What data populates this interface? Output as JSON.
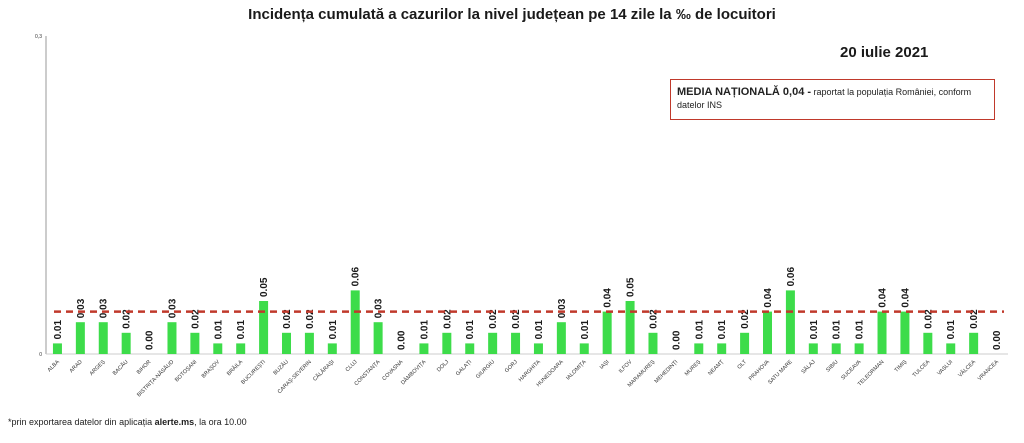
{
  "title": "Incidența cumulată a cazurilor la nivel județean pe 14 zile   la ‰ de locuitori",
  "date": "20 iulie 2021",
  "legend": {
    "strong": "MEDIA NAȚIONALĂ  0,04 -",
    "rest": " raportat la populația României, conform datelor INS"
  },
  "footnote": {
    "prefix": "*prin exportarea datelor din aplicația ",
    "bold": "alerte.ms",
    "suffix": ", la ora 10.00"
  },
  "colors": {
    "bar": "#3ddc4a",
    "average_line": "#c0392b",
    "axis": "#999999"
  },
  "chart_data": {
    "type": "bar",
    "title": "Incidența cumulată a cazurilor la nivel județean pe 14 zile   la ‰ de locuitori",
    "xlabel": "",
    "ylabel": "",
    "ylim": [
      0,
      0.3
    ],
    "y_ticks": [
      "0",
      "0,3"
    ],
    "average": 0.04,
    "average_label": "MEDIA NAȚIONALĂ 0,04",
    "categories": [
      "ALBA",
      "ARAD",
      "ARGEȘ",
      "BACĂU",
      "BIHOR",
      "BISTRIȚA-NĂSĂUD",
      "BOTOȘANI",
      "BRAȘOV",
      "BRĂILA",
      "BUCUREȘTI",
      "BUZĂU",
      "CARAȘ-SEVERIN",
      "CĂLĂRAȘI",
      "CLUJ",
      "CONSTANȚA",
      "COVASNA",
      "DÂMBOVIȚA",
      "DOLJ",
      "GALAȚI",
      "GIURGIU",
      "GORJ",
      "HARGHITA",
      "HUNEDOARA",
      "IALOMIȚA",
      "IAȘI",
      "ILFOV",
      "MARAMUREȘ",
      "MEHEDINȚI",
      "MUREȘ",
      "NEAMȚ",
      "OLT",
      "PRAHOVA",
      "SATU MARE",
      "SĂLAJ",
      "SIBIU",
      "SUCEAVA",
      "TELEORMAN",
      "TIMIȘ",
      "TULCEA",
      "VASLUI",
      "VÂLCEA",
      "VRANCEA"
    ],
    "values": [
      0.01,
      0.03,
      0.03,
      0.02,
      0.0,
      0.03,
      0.02,
      0.01,
      0.01,
      0.05,
      0.02,
      0.02,
      0.01,
      0.06,
      0.03,
      0.0,
      0.01,
      0.02,
      0.01,
      0.02,
      0.02,
      0.01,
      0.03,
      0.01,
      0.04,
      0.05,
      0.02,
      0.0,
      0.01,
      0.01,
      0.02,
      0.04,
      0.06,
      0.01,
      0.01,
      0.01,
      0.04,
      0.04,
      0.02,
      0.01,
      0.02,
      0.0
    ],
    "value_labels": [
      "0.01",
      "0.03",
      "0.03",
      "0.02",
      "0.00",
      "0.03",
      "0.02",
      "0.01",
      "0.01",
      "0.05",
      "0.02",
      "0.02",
      "0.01",
      "0.06",
      "0.03",
      "0.00",
      "0.01",
      "0.02",
      "0.01",
      "0.02",
      "0.02",
      "0.01",
      "0.03",
      "0.01",
      "0.04",
      "0.05",
      "0.02",
      "0.00",
      "0.01",
      "0.01",
      "0.02",
      "0.04",
      "0.06",
      "0.01",
      "0.01",
      "0.01",
      "0.04",
      "0.04",
      "0.02",
      "0.01",
      "0.02",
      "0.00"
    ]
  }
}
